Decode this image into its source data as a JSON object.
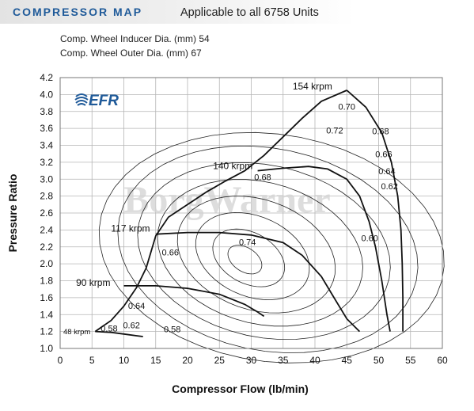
{
  "header": {
    "title": "COMPRESSOR MAP",
    "subtitle": "Applicable to all 6758 Units"
  },
  "specs": [
    "Comp. Wheel Inducer Dia. (mm) 54",
    "Comp. Wheel Outer Dia. (mm) 67"
  ],
  "logo_text": "EFR",
  "watermark_text": "BorgWarner",
  "colors": {
    "title_blue": "#1f5a99",
    "grid": "#b5b5b5",
    "line": "#111111",
    "watermark": "#cfcfcf"
  },
  "chart_data": {
    "type": "line",
    "xlabel": "Compressor Flow (lb/min)",
    "ylabel": "Pressure Ratio",
    "xlim": [
      0,
      60
    ],
    "ylim": [
      1.0,
      4.2
    ],
    "x_ticks": [
      0,
      5,
      10,
      15,
      20,
      25,
      30,
      35,
      40,
      45,
      50,
      55,
      60
    ],
    "y_ticks": [
      1.0,
      1.2,
      1.4,
      1.6,
      1.8,
      2.0,
      2.2,
      2.4,
      2.6,
      2.8,
      3.0,
      3.2,
      3.4,
      3.6,
      3.8,
      4.0,
      4.2
    ],
    "grid": true,
    "surge_line": [
      [
        5.5,
        1.2
      ],
      [
        8,
        1.33
      ],
      [
        10,
        1.5
      ],
      [
        12,
        1.72
      ],
      [
        13.5,
        1.95
      ],
      [
        15,
        2.33
      ],
      [
        17,
        2.55
      ],
      [
        20,
        2.7
      ],
      [
        23,
        2.85
      ],
      [
        26,
        2.98
      ],
      [
        29,
        3.1
      ],
      [
        32,
        3.28
      ],
      [
        35,
        3.5
      ],
      [
        38,
        3.72
      ],
      [
        41,
        3.92
      ],
      [
        45,
        4.05
      ]
    ],
    "speed_lines": [
      {
        "label": "48 krpm",
        "label_at": [
          0.5,
          1.17
        ],
        "points": [
          [
            5.5,
            1.2
          ],
          [
            8,
            1.19
          ],
          [
            10,
            1.17
          ],
          [
            12,
            1.15
          ],
          [
            13,
            1.14
          ]
        ]
      },
      {
        "label": "90 krpm",
        "label_at": [
          2.5,
          1.74
        ],
        "points": [
          [
            10,
            1.74
          ],
          [
            15,
            1.74
          ],
          [
            20,
            1.71
          ],
          [
            25,
            1.64
          ],
          [
            29,
            1.52
          ],
          [
            31,
            1.43
          ],
          [
            32,
            1.38
          ]
        ]
      },
      {
        "label": "117 krpm",
        "label_at": [
          8,
          2.38
        ],
        "points": [
          [
            15,
            2.35
          ],
          [
            20,
            2.37
          ],
          [
            25,
            2.37
          ],
          [
            30,
            2.34
          ],
          [
            35,
            2.25
          ],
          [
            38,
            2.1
          ],
          [
            41,
            1.85
          ],
          [
            43,
            1.6
          ],
          [
            45,
            1.35
          ],
          [
            47,
            1.2
          ]
        ]
      },
      {
        "label": "140 krpm",
        "label_at": [
          24,
          3.12
        ],
        "points": [
          [
            31,
            3.1
          ],
          [
            35,
            3.13
          ],
          [
            39,
            3.15
          ],
          [
            42,
            3.12
          ],
          [
            45,
            3.0
          ],
          [
            47,
            2.8
          ],
          [
            48.5,
            2.5
          ],
          [
            49.5,
            2.2
          ],
          [
            50.5,
            1.8
          ],
          [
            51.3,
            1.4
          ],
          [
            51.8,
            1.2
          ]
        ]
      },
      {
        "label": "154 krpm",
        "label_at": [
          36.5,
          4.06
        ],
        "points": [
          [
            45,
            4.05
          ],
          [
            48,
            3.85
          ],
          [
            50.5,
            3.55
          ],
          [
            52,
            3.2
          ],
          [
            53,
            2.8
          ],
          [
            53.5,
            2.4
          ],
          [
            53.7,
            2.0
          ],
          [
            53.8,
            1.6
          ],
          [
            53.8,
            1.2
          ]
        ]
      }
    ],
    "efficiency_labels": [
      {
        "label": "0.58",
        "at": [
          7.7,
          1.2
        ]
      },
      {
        "label": "0.62",
        "at": [
          11.2,
          1.24
        ]
      },
      {
        "label": "0.58",
        "at": [
          17.6,
          1.19
        ]
      },
      {
        "label": "0.64",
        "at": [
          12,
          1.47
        ]
      },
      {
        "label": "0.66",
        "at": [
          17.3,
          2.1
        ]
      },
      {
        "label": "0.74",
        "at": [
          29.4,
          2.22
        ]
      },
      {
        "label": "0.68",
        "at": [
          31.8,
          2.99
        ]
      },
      {
        "label": "0.72",
        "at": [
          43.1,
          3.54
        ]
      },
      {
        "label": "0.70",
        "at": [
          45,
          3.82
        ]
      },
      {
        "label": "0.68",
        "at": [
          50.3,
          3.53
        ]
      },
      {
        "label": "0.66",
        "at": [
          50.8,
          3.26
        ]
      },
      {
        "label": "0.64",
        "at": [
          51.3,
          3.06
        ]
      },
      {
        "label": "0.62",
        "at": [
          51.7,
          2.88
        ]
      },
      {
        "label": "0.60",
        "at": [
          48.6,
          2.27
        ]
      }
    ]
  }
}
